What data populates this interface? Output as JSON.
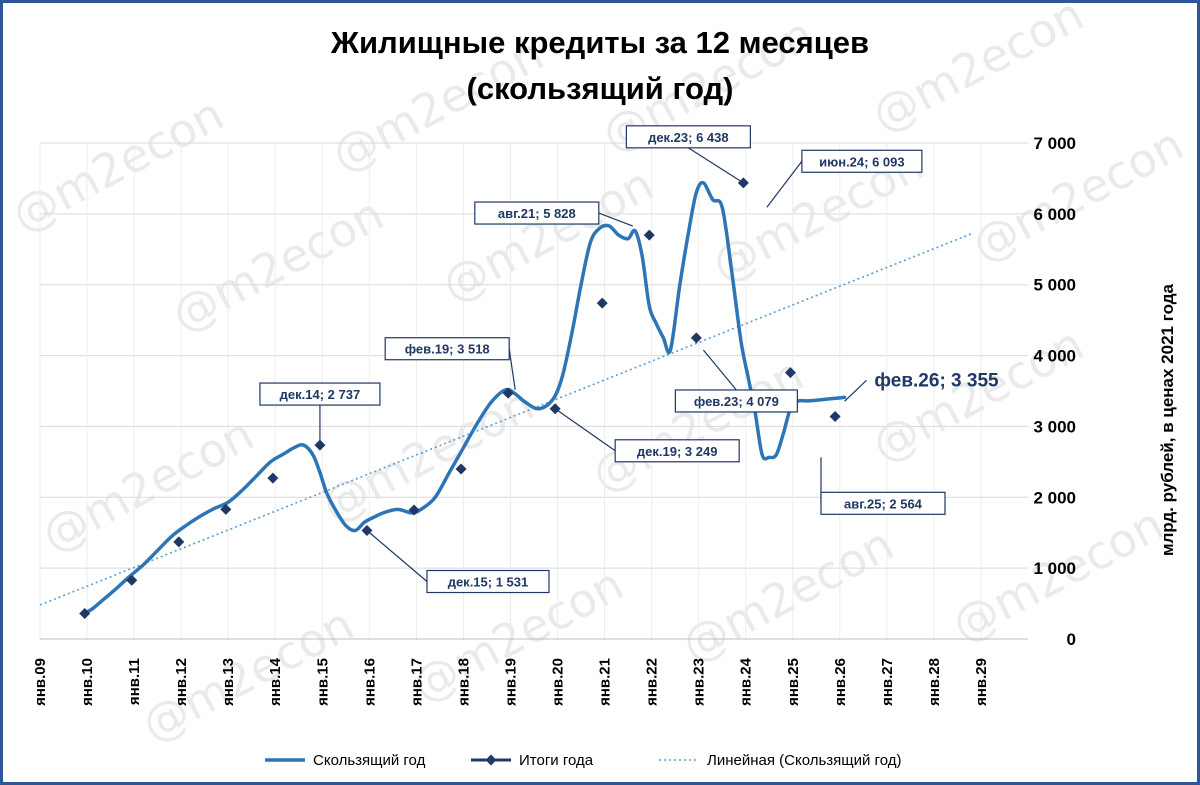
{
  "chart_data": {
    "type": "line",
    "title_line1": "Жилищные кредиты за 12 месяцев",
    "title_line2": "(скользящий год)",
    "ylabel": "млрд. рублей, в ценах 2021 года",
    "ylim": [
      0,
      7000
    ],
    "y_ticks": [
      0,
      1000,
      2000,
      3000,
      4000,
      5000,
      6000,
      7000
    ],
    "y_tick_labels": [
      "0",
      "1 000",
      "2 000",
      "3 000",
      "4 000",
      "5 000",
      "6 000",
      "7 000"
    ],
    "x_tick_labels": [
      "янв.09",
      "янв.10",
      "янв.11",
      "янв.12",
      "янв.13",
      "янв.14",
      "янв.15",
      "янв.16",
      "янв.17",
      "янв.18",
      "янв.19",
      "янв.20",
      "янв.21",
      "янв.22",
      "янв.23",
      "янв.24",
      "янв.25",
      "янв.26",
      "янв.27",
      "янв.28",
      "янв.29"
    ],
    "xlim": [
      2009.0,
      2030.0
    ],
    "grid": true,
    "legend_position": "bottom",
    "series": [
      {
        "name": "Скользящий год",
        "color": "#2e75b6",
        "x": [
          2009.9,
          2010.1,
          2010.3,
          2010.6,
          2010.9,
          2011.2,
          2011.5,
          2011.8,
          2012.1,
          2012.4,
          2012.7,
          2013.0,
          2013.3,
          2013.6,
          2013.9,
          2014.2,
          2014.4,
          2014.6,
          2014.8,
          2014.95,
          2015.1,
          2015.3,
          2015.5,
          2015.7,
          2015.9,
          2016.1,
          2016.3,
          2016.6,
          2016.9,
          2017.1,
          2017.4,
          2017.7,
          2018.0,
          2018.3,
          2018.6,
          2018.9,
          2019.1,
          2019.3,
          2019.6,
          2019.9,
          2020.1,
          2020.3,
          2020.5,
          2020.7,
          2020.9,
          2021.1,
          2021.3,
          2021.5,
          2021.65,
          2021.8,
          2021.95,
          2022.1,
          2022.25,
          2022.4,
          2022.6,
          2022.8,
          2022.95,
          2023.1,
          2023.3,
          2023.5,
          2023.7,
          2023.9,
          2024.05,
          2024.2,
          2024.35,
          2024.5,
          2024.65,
          2024.8,
          2024.95,
          2025.1,
          2025.3,
          2025.5,
          2025.65,
          2025.8,
          2025.95,
          2026.1
        ],
        "values": [
          350,
          420,
          530,
          700,
          880,
          1050,
          1250,
          1450,
          1600,
          1730,
          1840,
          1930,
          2100,
          2300,
          2500,
          2620,
          2700,
          2737,
          2600,
          2350,
          2050,
          1800,
          1600,
          1531,
          1650,
          1720,
          1780,
          1830,
          1780,
          1830,
          2000,
          2350,
          2700,
          3050,
          3350,
          3518,
          3460,
          3350,
          3249,
          3380,
          3700,
          4300,
          5000,
          5600,
          5800,
          5828,
          5700,
          5650,
          5760,
          5400,
          4700,
          4450,
          4250,
          4079,
          5000,
          5800,
          6300,
          6438,
          6200,
          6093,
          5200,
          4200,
          3700,
          3200,
          2600,
          2564,
          2600,
          2900,
          3250,
          3355,
          3360,
          3370,
          3380,
          3390,
          3400,
          3410
        ]
      },
      {
        "name": "Итоги года",
        "color": "#1f3864",
        "x": [
          2009.95,
          2010.95,
          2011.95,
          2012.95,
          2013.95,
          2014.95,
          2015.95,
          2016.95,
          2017.95,
          2018.95,
          2019.95,
          2020.95,
          2021.95,
          2022.95,
          2023.95,
          2024.95,
          2025.9
        ],
        "values": [
          360,
          830,
          1370,
          1830,
          2270,
          2737,
          1531,
          1820,
          2400,
          3470,
          3249,
          4740,
          5700,
          4250,
          6438,
          3760,
          3140
        ]
      }
    ],
    "trendline": {
      "name": "Линейная (Скользящий год)",
      "color": "#5b9bd5",
      "x": [
        2009.0,
        2028.8
      ],
      "values": [
        480,
        5720
      ]
    },
    "annotations": [
      {
        "text": "дек.14; 2 737",
        "x": 2014.95,
        "y": 2737
      },
      {
        "text": "дек.15; 1 531",
        "x": 2015.95,
        "y": 1531
      },
      {
        "text": "фев.19; 3 518",
        "x": 2019.1,
        "y": 3518
      },
      {
        "text": "дек.19; 3 249",
        "x": 2019.95,
        "y": 3249
      },
      {
        "text": "авг.21; 5 828",
        "x": 2021.6,
        "y": 5828
      },
      {
        "text": "фев.23; 4 079",
        "x": 2023.1,
        "y": 4079
      },
      {
        "text": "дек.23; 6 438",
        "x": 2023.95,
        "y": 6438
      },
      {
        "text": "июн.24; 6 093",
        "x": 2024.45,
        "y": 6093
      },
      {
        "text": "авг.25; 2 564",
        "x": 2025.6,
        "y": 2564
      },
      {
        "text": "фев.26; 3 355",
        "x": 2026.1,
        "y": 3355
      }
    ],
    "watermark": "@m2econ"
  }
}
